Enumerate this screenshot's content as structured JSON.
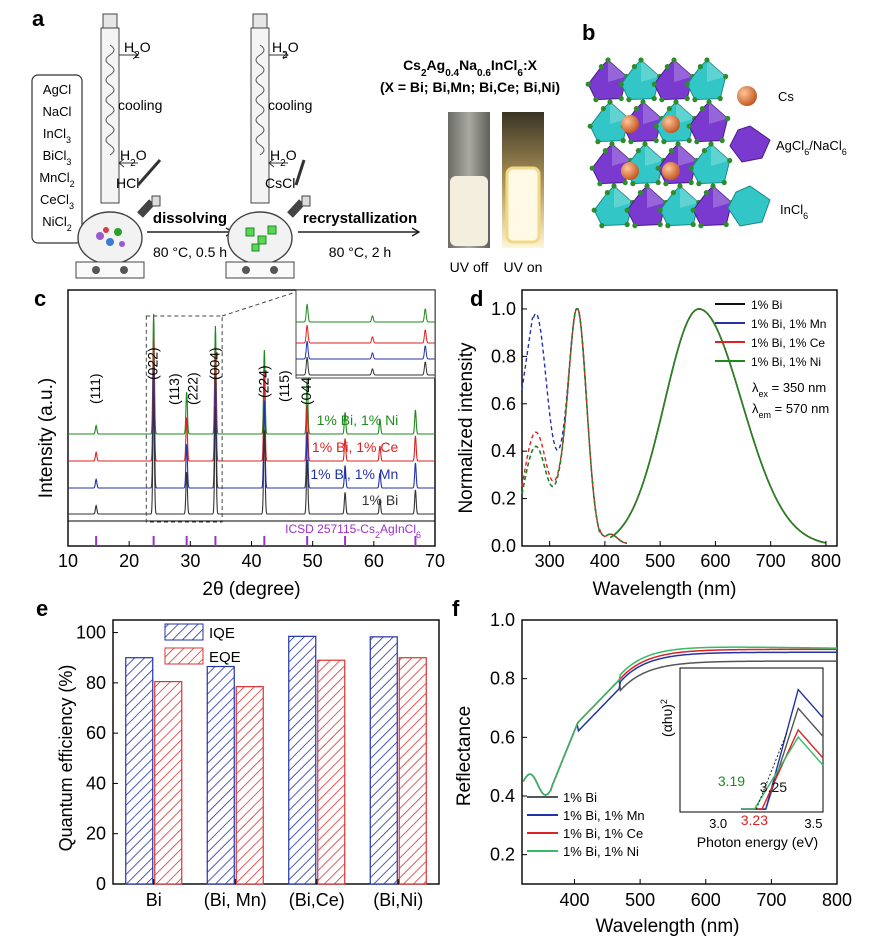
{
  "panel_a": {
    "letter": "a",
    "reagents": [
      "AgCl",
      "NaCl",
      "InCl3",
      "BiCl3",
      "MnCl2",
      "CeCl3",
      "NiCl2"
    ],
    "water_label": "H2O",
    "cooling_label": "cooling",
    "hcl_label": "HCl",
    "cscl_label": "CsCl",
    "step1_label": "dissolving",
    "step1_cond": "80 °C, 0.5 h",
    "step2_label": "recrystallization",
    "step2_cond": "80 °C, 2 h",
    "formula_line1": "Cs2Ag0.4Na0.6InCl6:X",
    "formula_line2": "(X = Bi; Bi,Mn; Bi,Ce; Bi,Ni)",
    "uv_off_label": "UV off",
    "uv_on_label": "UV on"
  },
  "panel_b": {
    "letter": "b",
    "legend": [
      "Cs",
      "AgCl6/NaCl6",
      "InCl6"
    ],
    "colors": {
      "cs": "#e07a3a",
      "agna": "#7a3ad0",
      "in": "#33c6c6",
      "cl": "#2e8b2e"
    }
  },
  "chart_data": [
    {
      "panel": "c",
      "type": "line",
      "xlabel": "2θ (degree)",
      "ylabel": "Intensity (a.u.)",
      "xlim": [
        10,
        70
      ],
      "xticks": [
        10,
        20,
        30,
        40,
        50,
        60,
        70
      ],
      "peaks": [
        14.6,
        24.0,
        29.4,
        34.1,
        42.1,
        49.1,
        55.3,
        61.0,
        66.8
      ],
      "peak_heights": [
        0.07,
        1.0,
        0.35,
        0.9,
        0.7,
        0.45,
        0.18,
        0.12,
        0.2
      ],
      "miller": [
        {
          "x": 14.6,
          "label": "(111)"
        },
        {
          "x": 24.0,
          "label": "(022)"
        },
        {
          "x": 27.5,
          "label": "(113)"
        },
        {
          "x": 30.5,
          "label": "(222)"
        },
        {
          "x": 34.1,
          "label": "(004)"
        },
        {
          "x": 42.1,
          "label": "(224)"
        },
        {
          "x": 45.5,
          "label": "(115)"
        },
        {
          "x": 49.1,
          "label": "(044)"
        }
      ],
      "series": [
        {
          "name": "1% Bi, 1% Ni",
          "color": "#1e8a1e"
        },
        {
          "name": "1% Bi, 1% Ce",
          "color": "#dd2222"
        },
        {
          "name": "1% Bi, 1% Mn",
          "color": "#2233aa"
        },
        {
          "name": "1% Bi",
          "color": "#333333"
        }
      ],
      "reference": {
        "name": "ICSD 257115-Cs2AgInCl6",
        "color": "#9b30c8",
        "sticks": [
          14.6,
          24.0,
          29.4,
          34.1,
          42.1,
          49.1,
          55.3,
          66.8
        ]
      }
    },
    {
      "panel": "d",
      "type": "line",
      "xlabel": "Wavelength (nm)",
      "ylabel": "Normalized intensity",
      "xlim": [
        250,
        820
      ],
      "ylim": [
        0,
        1.08
      ],
      "xticks": [
        300,
        400,
        500,
        600,
        700,
        800
      ],
      "yticks": [
        0.0,
        0.2,
        0.4,
        0.6,
        0.8,
        1.0
      ],
      "series": [
        {
          "name": "1% Bi",
          "color": "#111111"
        },
        {
          "name": "1% Bi, 1% Mn",
          "color": "#2233aa"
        },
        {
          "name": "1% Bi, 1% Ce",
          "color": "#dd2222"
        },
        {
          "name": "1% Bi, 1% Ni",
          "color": "#1e8a1e"
        }
      ],
      "annotations": [
        "λex = 350 nm",
        "λem = 570 nm"
      ],
      "emission_peak": 570,
      "excitation_peak": 350,
      "excitation_first_peak": {
        "x": 275,
        "values": [
          0.42,
          0.98,
          0.48,
          0.42
        ]
      }
    },
    {
      "panel": "e",
      "type": "bar",
      "ylabel": "Quantum efficiency (%)",
      "categories": [
        "Bi",
        "(Bi, Mn)",
        "(Bi,Ce)",
        "(Bi,Ni)"
      ],
      "ylim": [
        0,
        105
      ],
      "yticks": [
        0,
        20,
        40,
        60,
        80,
        100
      ],
      "series": [
        {
          "name": "IQE",
          "values": [
            90,
            86.5,
            98.5,
            98.3
          ],
          "color": "#2233aa"
        },
        {
          "name": "EQE",
          "values": [
            80.5,
            78.5,
            89,
            90
          ],
          "color": "#dd3333"
        }
      ]
    },
    {
      "panel": "f",
      "type": "line",
      "xlabel": "Wavelength (nm)",
      "ylabel": "Reflectance",
      "xlim": [
        320,
        800
      ],
      "ylim": [
        0.1,
        1.0
      ],
      "xticks": [
        400,
        500,
        600,
        700,
        800
      ],
      "yticks": [
        0.2,
        0.4,
        0.6,
        0.8,
        1.0
      ],
      "series": [
        {
          "name": "1% Bi",
          "color": "#555555",
          "plateau": 0.86
        },
        {
          "name": "1% Bi, 1% Mn",
          "color": "#2233aa",
          "plateau": 0.89
        },
        {
          "name": "1% Bi, 1% Ce",
          "color": "#dd2222",
          "plateau": 0.9
        },
        {
          "name": "1% Bi, 1% Ni",
          "color": "#33bb66",
          "plateau": 0.91
        }
      ],
      "inset": {
        "xlabel": "Photon energy (eV)",
        "ylabel": "(αhυ)2",
        "xticks": [
          "3.0",
          "3.5"
        ],
        "band_gaps": [
          {
            "value": "3.19",
            "color": "#1e8a1e"
          },
          {
            "value": "3.23",
            "color": "#dd2222"
          },
          {
            "value": "3.25",
            "color": "#111111"
          }
        ]
      }
    }
  ]
}
